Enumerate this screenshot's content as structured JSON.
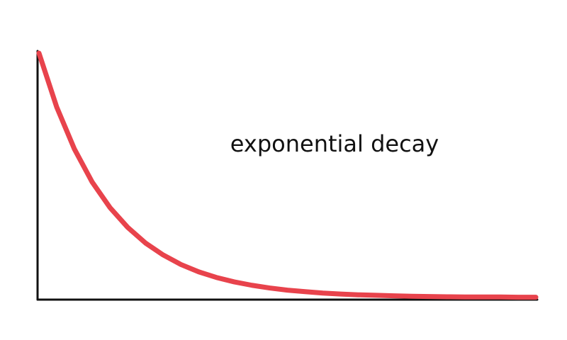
{
  "chart_data": {
    "type": "line",
    "title": "",
    "xlabel": "",
    "ylabel": "",
    "annotation": "exponential decay",
    "grid": false,
    "legend": "none",
    "xlim": [
      0,
      7
    ],
    "ylim": [
      0,
      1
    ],
    "series": [
      {
        "color": "#e8434c",
        "x": [
          0,
          0.25,
          0.5,
          0.75,
          1,
          1.25,
          1.5,
          1.75,
          2,
          2.25,
          2.5,
          2.75,
          3,
          3.25,
          3.5,
          3.75,
          4,
          4.25,
          4.5,
          4.75,
          5,
          5.25,
          5.5,
          5.75,
          6,
          6.25,
          6.5,
          6.75,
          7
        ],
        "y": [
          1.0,
          0.779,
          0.607,
          0.472,
          0.368,
          0.287,
          0.223,
          0.174,
          0.135,
          0.105,
          0.082,
          0.064,
          0.05,
          0.039,
          0.03,
          0.024,
          0.018,
          0.014,
          0.011,
          0.009,
          0.007,
          0.005,
          0.004,
          0.003,
          0.002,
          0.002,
          0.002,
          0.001,
          0.001
        ]
      }
    ]
  },
  "colors": {
    "curve": "#e8434c",
    "axes": "#111111",
    "background": "#ffffff"
  }
}
